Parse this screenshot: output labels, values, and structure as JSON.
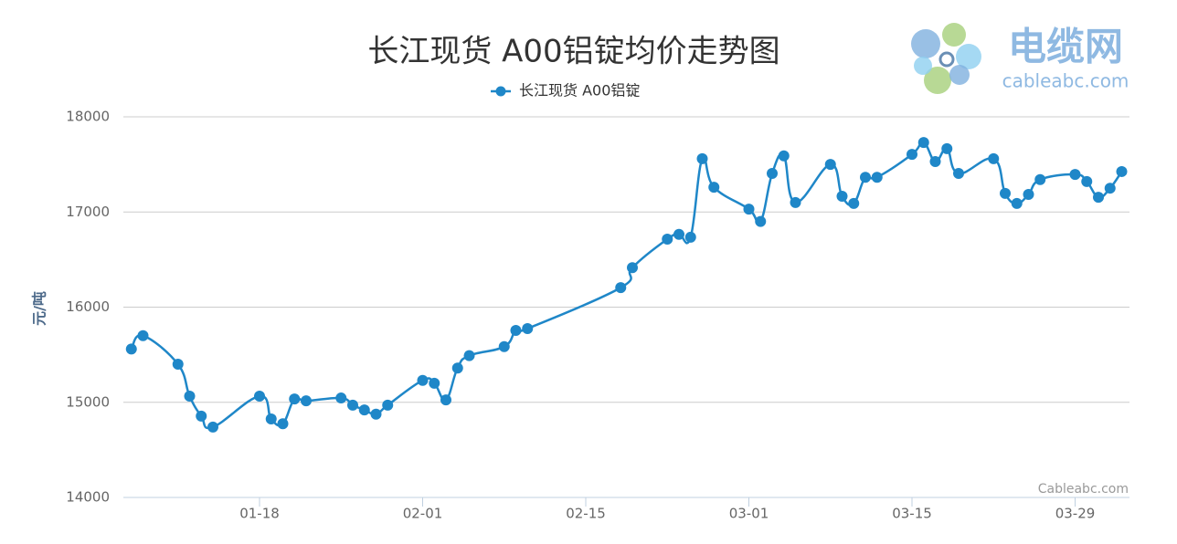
{
  "chart_data": {
    "type": "line",
    "title": "长江现货 A00铝锭均价走势图",
    "y_label": "元/吨",
    "logo_text": "电缆网",
    "logo_subtext": "cableabc.com",
    "credits": "Cableabc.com",
    "x": [
      "01-07",
      "01-08",
      "01-11",
      "01-12",
      "01-13",
      "01-14",
      "01-18",
      "01-19",
      "01-20",
      "01-21",
      "01-22",
      "01-25",
      "01-26",
      "01-27",
      "01-28",
      "01-29",
      "02-01",
      "02-02",
      "02-03",
      "02-04",
      "02-05",
      "02-08",
      "02-09",
      "02-10",
      "02-18",
      "02-19",
      "02-22",
      "02-23",
      "02-24",
      "02-25",
      "02-26",
      "03-01",
      "03-02",
      "03-03",
      "03-04",
      "03-05",
      "03-08",
      "03-09",
      "03-10",
      "03-11",
      "03-12",
      "03-15",
      "03-16",
      "03-17",
      "03-18",
      "03-19",
      "03-22",
      "03-23",
      "03-24",
      "03-25",
      "03-26",
      "03-29",
      "03-30",
      "03-31",
      "04-01",
      "04-02"
    ],
    "series": [
      {
        "name": "长江现货 A00铝锭",
        "color": "#1f87c8",
        "values": [
          15560,
          15700,
          15400,
          15065,
          14855,
          14740,
          15065,
          14825,
          14775,
          15035,
          15015,
          15045,
          14970,
          14920,
          14875,
          14970,
          15230,
          15200,
          15025,
          15360,
          15490,
          15585,
          15755,
          15775,
          16205,
          16415,
          16715,
          16765,
          16735,
          17560,
          17260,
          17030,
          16900,
          17405,
          17590,
          17100,
          17500,
          17165,
          17090,
          17365,
          17365,
          17605,
          17730,
          17530,
          17665,
          17405,
          17560,
          17195,
          17090,
          17185,
          17340,
          17395,
          17320,
          17155,
          17250,
          17425
        ]
      }
    ],
    "xticks": [
      "01-18",
      "02-01",
      "02-15",
      "03-01",
      "03-15",
      "03-29"
    ],
    "ylim": [
      14000,
      18000
    ],
    "yticks": [
      14000,
      15000,
      16000,
      17000,
      18000
    ],
    "grid": true
  }
}
